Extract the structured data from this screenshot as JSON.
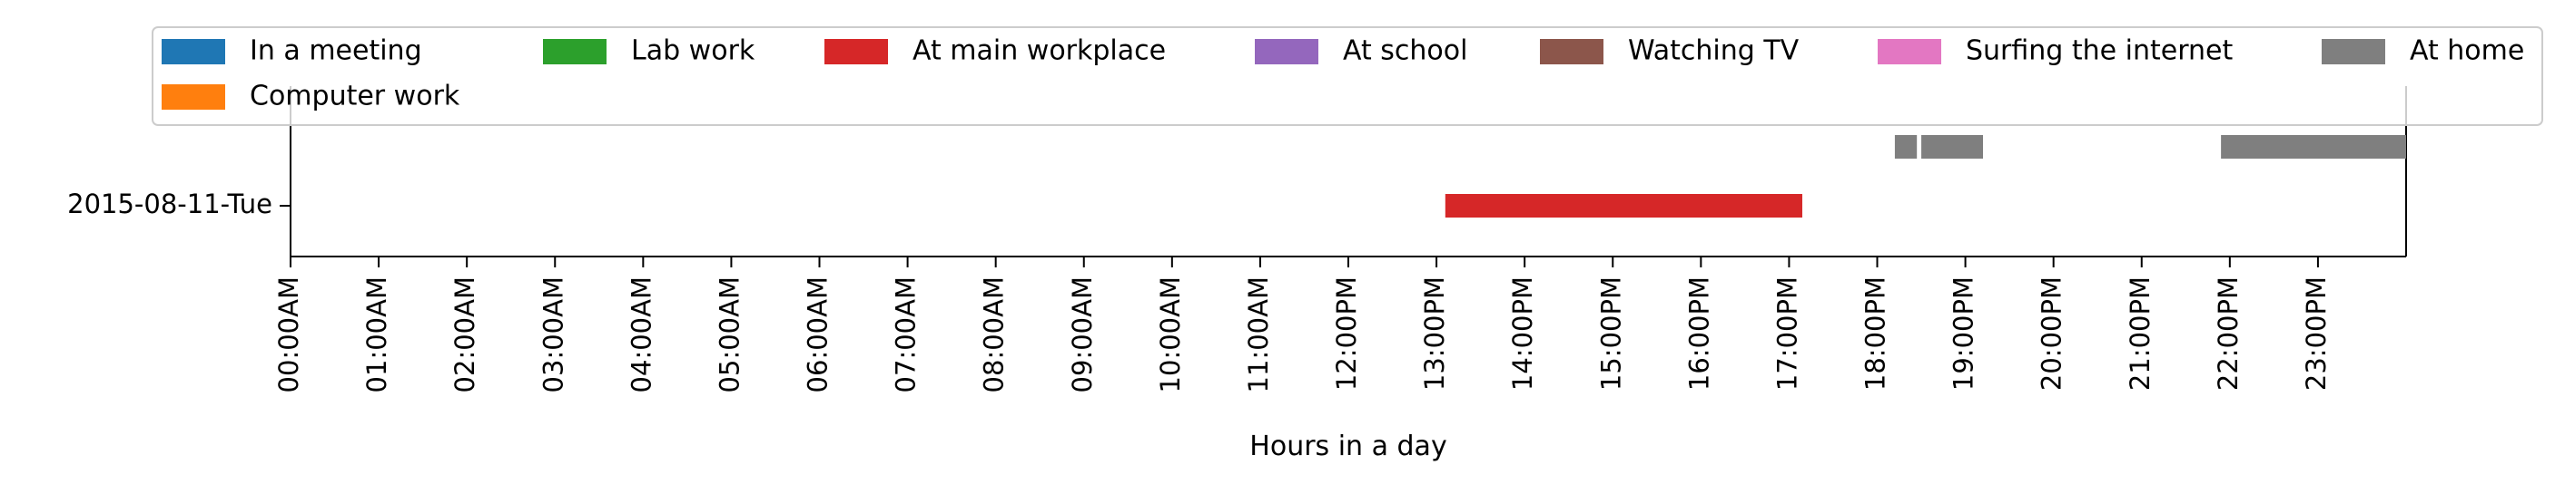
{
  "chart_data": {
    "type": "bar",
    "orientation": "horizontal",
    "xlabel": "Hours in a day",
    "ylabel": "",
    "xlim": [
      0,
      24
    ],
    "x_tick_labels": [
      "00:00AM",
      "01:00AM",
      "02:00AM",
      "03:00AM",
      "04:00AM",
      "05:00AM",
      "06:00AM",
      "07:00AM",
      "08:00AM",
      "09:00AM",
      "10:00AM",
      "11:00AM",
      "12:00PM",
      "13:00PM",
      "14:00PM",
      "15:00PM",
      "16:00PM",
      "17:00PM",
      "18:00PM",
      "19:00PM",
      "20:00PM",
      "21:00PM",
      "22:00PM",
      "23:00PM"
    ],
    "categories": [
      "2015-08-11-Tue"
    ],
    "legend": {
      "location": "top",
      "columns": 7,
      "entries": [
        {
          "name": "In a meeting",
          "color": "#1f77b4"
        },
        {
          "name": "Lab work",
          "color": "#2ca02c"
        },
        {
          "name": "At main workplace",
          "color": "#d62728"
        },
        {
          "name": "At school",
          "color": "#9467bd"
        },
        {
          "name": "Watching TV",
          "color": "#8c564b"
        },
        {
          "name": "Surfing the internet",
          "color": "#e377c2"
        },
        {
          "name": "At home",
          "color": "#7f7f7f"
        },
        {
          "name": "Computer work",
          "color": "#ff7f0e"
        }
      ]
    },
    "series": [
      {
        "name": "In a meeting",
        "color": "#1f77b4",
        "lane": 0,
        "segments": []
      },
      {
        "name": "Computer work",
        "color": "#ff7f0e",
        "lane": 1,
        "segments": []
      },
      {
        "name": "Lab work",
        "color": "#2ca02c",
        "lane": 0,
        "segments": []
      },
      {
        "name": "At main workplace",
        "color": "#d62728",
        "lane": 0,
        "segments": [
          {
            "start": 13.1,
            "end": 17.15
          }
        ]
      },
      {
        "name": "At school",
        "color": "#9467bd",
        "lane": 0,
        "segments": []
      },
      {
        "name": "Watching TV",
        "color": "#8c564b",
        "lane": 0,
        "segments": []
      },
      {
        "name": "Surfing the internet",
        "color": "#e377c2",
        "lane": 0,
        "segments": []
      },
      {
        "name": "At home",
        "color": "#7f7f7f",
        "lane": 1,
        "segments": [
          {
            "start": 18.2,
            "end": 18.45
          },
          {
            "start": 18.5,
            "end": 19.2
          },
          {
            "start": 21.9,
            "end": 24.0
          }
        ]
      }
    ],
    "grid": false
  }
}
